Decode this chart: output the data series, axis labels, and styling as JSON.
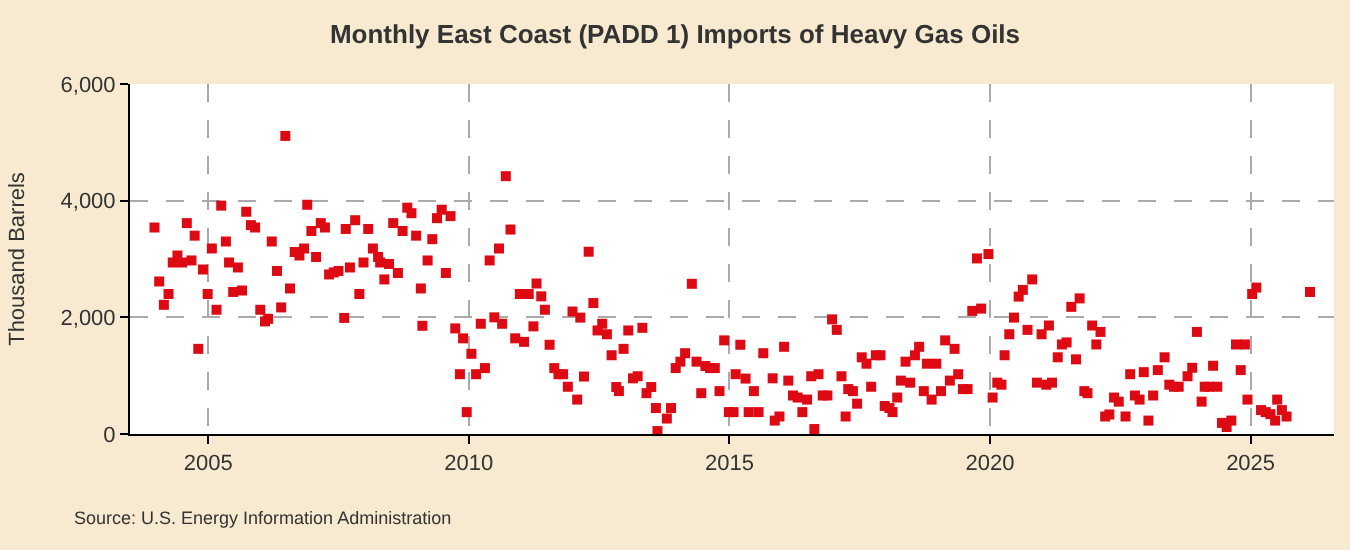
{
  "chart_data": {
    "type": "scatter",
    "title": "Monthly East Coast (PADD 1) Imports of Heavy Gas Oils",
    "ylabel": "Thousand Barrels",
    "annotations": [
      "Source: U.S. Energy Information Administration"
    ],
    "x": [
      2003.97,
      2004.06,
      2004.15,
      2004.24,
      2004.32,
      2004.41,
      2004.5,
      2004.59,
      2004.68,
      2004.74,
      2004.81,
      2004.9,
      2004.99,
      2005.07,
      2005.16,
      2005.25,
      2005.34,
      2005.4,
      2005.48,
      2005.57,
      2005.65,
      2005.73,
      2005.82,
      2005.9,
      2006.0,
      2006.09,
      2006.15,
      2006.22,
      2006.32,
      2006.4,
      2006.48,
      2006.57,
      2006.66,
      2006.75,
      2006.84,
      2006.9,
      2006.98,
      2007.07,
      2007.16,
      2007.24,
      2007.32,
      2007.41,
      2007.5,
      2007.61,
      2007.64,
      2007.72,
      2007.82,
      2007.9,
      2007.98,
      2008.07,
      2008.16,
      2008.26,
      2008.3,
      2008.38,
      2008.47,
      2008.55,
      2008.64,
      2008.73,
      2008.82,
      2008.9,
      2008.99,
      2009.08,
      2009.11,
      2009.21,
      2009.3,
      2009.39,
      2009.48,
      2009.56,
      2009.65,
      2009.74,
      2009.83,
      2009.89,
      2009.96,
      2010.05,
      2010.14,
      2010.23,
      2010.31,
      2010.4,
      2010.49,
      2010.58,
      2010.64,
      2010.71,
      2010.8,
      2010.89,
      2010.98,
      2011.06,
      2011.15,
      2011.24,
      2011.3,
      2011.39,
      2011.46,
      2011.55,
      2011.64,
      2011.72,
      2011.81,
      2011.9,
      2011.99,
      2012.08,
      2012.14,
      2012.21,
      2012.3,
      2012.39,
      2012.47,
      2012.56,
      2012.65,
      2012.74,
      2012.83,
      2012.88,
      2012.97,
      2013.06,
      2013.15,
      2013.24,
      2013.33,
      2013.41,
      2013.5,
      2013.59,
      2013.62,
      2013.8,
      2013.88,
      2013.97,
      2014.06,
      2014.15,
      2014.28,
      2014.37,
      2014.46,
      2014.54,
      2014.63,
      2014.72,
      2014.81,
      2014.9,
      2014.99,
      2015.08,
      2015.12,
      2015.21,
      2015.31,
      2015.37,
      2015.47,
      2015.56,
      2015.65,
      2015.83,
      2015.87,
      2015.96,
      2016.05,
      2016.13,
      2016.22,
      2016.31,
      2016.4,
      2016.49,
      2016.57,
      2016.63,
      2016.71,
      2016.79,
      2016.88,
      2016.97,
      2017.06,
      2017.15,
      2017.23,
      2017.28,
      2017.37,
      2017.45,
      2017.54,
      2017.63,
      2017.72,
      2017.81,
      2017.9,
      2017.98,
      2018.07,
      2018.13,
      2018.22,
      2018.29,
      2018.38,
      2018.47,
      2018.56,
      2018.64,
      2018.73,
      2018.79,
      2018.88,
      2018.97,
      2019.06,
      2019.14,
      2019.23,
      2019.32,
      2019.39,
      2019.48,
      2019.57,
      2019.66,
      2019.75,
      2019.83,
      2019.97,
      2020.05,
      2020.14,
      2020.22,
      2020.28,
      2020.37,
      2020.46,
      2020.55,
      2020.63,
      2020.72,
      2020.81,
      2020.9,
      2020.99,
      2021.08,
      2021.13,
      2021.19,
      2021.3,
      2021.38,
      2021.47,
      2021.56,
      2021.65,
      2021.72,
      2021.81,
      2021.87,
      2021.96,
      2022.04,
      2022.12,
      2022.21,
      2022.29,
      2022.38,
      2022.47,
      2022.6,
      2022.69,
      2022.78,
      2022.87,
      2022.95,
      2023.04,
      2023.13,
      2023.22,
      2023.35,
      2023.44,
      2023.53,
      2023.62,
      2023.79,
      2023.88,
      2023.97,
      2024.06,
      2024.12,
      2024.2,
      2024.28,
      2024.36,
      2024.45,
      2024.54,
      2024.63,
      2024.72,
      2024.81,
      2024.89,
      2024.94,
      2025.03,
      2025.11,
      2025.2,
      2025.29,
      2025.38,
      2025.47,
      2025.51,
      2025.6,
      2025.69,
      2026.14
    ],
    "series": [
      {
        "color": "#dd0a14",
        "values": [
          3540,
          2615,
          2215,
          2400,
          2940,
          3060,
          2940,
          3615,
          2975,
          3400,
          1460,
          2820,
          2400,
          3180,
          2130,
          3915,
          3300,
          2940,
          2435,
          2855,
          2460,
          3810,
          3580,
          3540,
          2130,
          1930,
          1975,
          3300,
          2795,
          2170,
          5110,
          2495,
          3120,
          3060,
          3180,
          3930,
          3480,
          3035,
          3615,
          3540,
          2735,
          2770,
          2795,
          1990,
          3515,
          2855,
          3665,
          2400,
          2940,
          3515,
          3180,
          3035,
          2940,
          2650,
          2915,
          3615,
          2760,
          3480,
          3880,
          3785,
          3400,
          2495,
          1855,
          2975,
          3340,
          3700,
          3845,
          2760,
          3735,
          1810,
          1025,
          1640,
          375,
          1375,
          1025,
          1890,
          1130,
          2975,
          2000,
          3180,
          1890,
          4420,
          3505,
          1640,
          2400,
          1580,
          2400,
          1845,
          2580,
          2360,
          2130,
          1530,
          1130,
          1025,
          1025,
          810,
          2100,
          590,
          1995,
          985,
          3125,
          2245,
          1775,
          1890,
          1710,
          1350,
          805,
          735,
          1460,
          1775,
          955,
          990,
          1820,
          700,
          805,
          445,
          50,
          265,
          445,
          1130,
          1240,
          1385,
          2575,
          1240,
          700,
          1165,
          1130,
          1130,
          735,
          1605,
          375,
          375,
          1025,
          1530,
          950,
          375,
          735,
          375,
          1385,
          955,
          230,
          300,
          1495,
          915,
          660,
          625,
          375,
          590,
          990,
          85,
          1025,
          660,
          660,
          1965,
          1785,
          990,
          300,
          770,
          735,
          520,
          1315,
          1205,
          810,
          1350,
          1350,
          480,
          445,
          375,
          625,
          915,
          1240,
          880,
          1350,
          1495,
          735,
          1205,
          590,
          1205,
          735,
          1605,
          915,
          1460,
          1025,
          770,
          770,
          2110,
          3010,
          2150,
          3085,
          625,
          880,
          845,
          1350,
          1710,
          1995,
          2355,
          2470,
          1785,
          2650,
          880,
          1710,
          845,
          1860,
          880,
          1315,
          1535,
          1570,
          2180,
          1280,
          2325,
          735,
          700,
          1860,
          1535,
          1750,
          300,
          335,
          625,
          555,
          300,
          1025,
          660,
          590,
          1060,
          230,
          660,
          1095,
          1315,
          845,
          810,
          810,
          990,
          1135,
          1750,
          555,
          810,
          810,
          1170,
          810,
          190,
          120,
          230,
          1535,
          1095,
          1535,
          590,
          2400,
          2510,
          410,
          375,
          340,
          230,
          590,
          410,
          300,
          2435
        ]
      }
    ],
    "xlim": [
      2003.5,
      2026.6
    ],
    "xticks": [
      2005,
      2010,
      2015,
      2020,
      2025
    ],
    "ylim": [
      0,
      6000
    ],
    "yticks": [
      0,
      {
        "value": 2000,
        "label": "2,000"
      },
      {
        "value": 4000,
        "label": "4,000"
      },
      {
        "value": 6000,
        "label": "6,000"
      }
    ],
    "grid": true,
    "marker": "square"
  }
}
